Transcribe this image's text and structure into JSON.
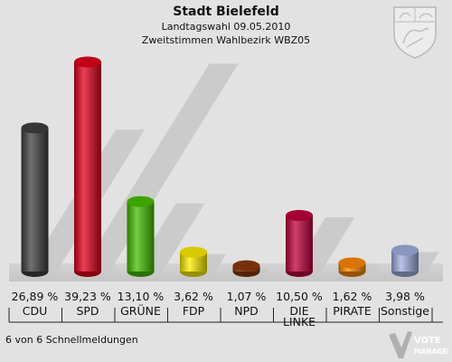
{
  "header": {
    "title": "Stadt Bielefeld",
    "subtitle1": "Landtagswahl 09.05.2010",
    "subtitle2": "Zweitstimmen Wahlbezirk WBZ05"
  },
  "footer": {
    "note": "6 von 6 Schnellmeldungen"
  },
  "logo": {
    "line1": "VOTE",
    "line2": "MANAGER"
  },
  "icons": {
    "crest": "nrw-coat-of-arms-icon",
    "logo": "votemanager-logo-icon"
  },
  "chart_data": {
    "type": "bar",
    "title": "Stadt Bielefeld",
    "categories": [
      "CDU",
      "SPD",
      "GRÜNE",
      "FDP",
      "NPD",
      "DIE LINKE",
      "PIRATE",
      "Sonstige"
    ],
    "values": [
      26.89,
      39.23,
      13.1,
      3.62,
      1.07,
      10.5,
      1.62,
      3.98
    ],
    "value_labels": [
      "26,89 %",
      "39,23 %",
      "13,10 %",
      "3,62 %",
      "1,07 %",
      "10,50 %",
      "1,62 %",
      "3,98 %"
    ],
    "colors": [
      "#404040",
      "#e2001a",
      "#46c000",
      "#ffee00",
      "#8b3a0e",
      "#c0003c",
      "#ff8800",
      "#a0b0e0"
    ],
    "ylim": [
      0,
      40
    ],
    "grid": false,
    "legend": "none"
  }
}
